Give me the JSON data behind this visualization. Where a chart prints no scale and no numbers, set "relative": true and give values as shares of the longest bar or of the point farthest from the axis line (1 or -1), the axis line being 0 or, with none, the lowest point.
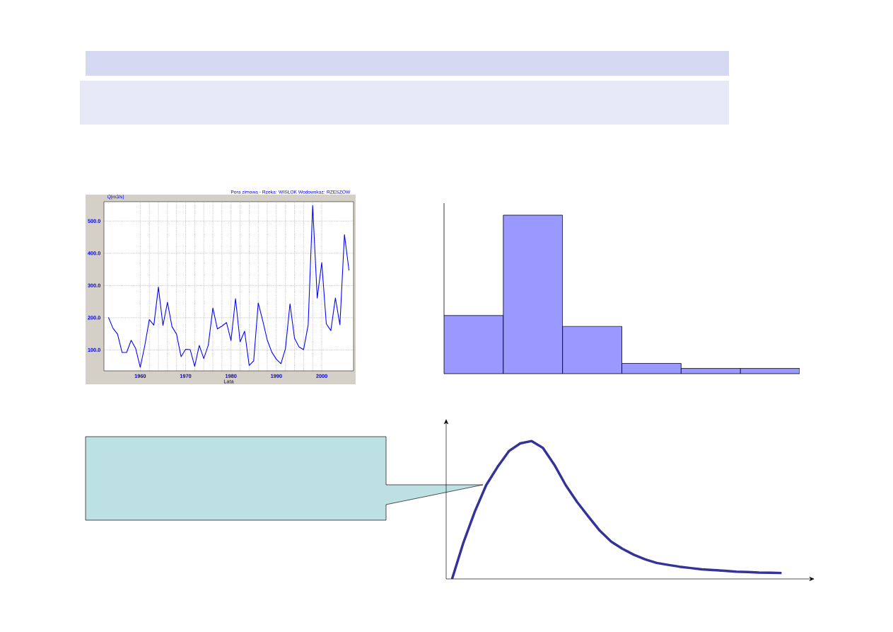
{
  "chart_data": [
    {
      "type": "line",
      "title": "Pora zimowa - Rzeka: WISŁOK Wodowskaz: RZESZÓW",
      "ylabel": "Q[m3/s]",
      "xlabel": "Lata",
      "x": [
        1953,
        1954,
        1955,
        1956,
        1957,
        1958,
        1959,
        1960,
        1961,
        1962,
        1963,
        1964,
        1965,
        1966,
        1967,
        1968,
        1969,
        1970,
        1971,
        1972,
        1973,
        1974,
        1975,
        1976,
        1977,
        1978,
        1979,
        1980,
        1981,
        1982,
        1983,
        1984,
        1985,
        1986,
        1987,
        1988,
        1989,
        1990,
        1991,
        1992,
        1993,
        1994,
        1995,
        1996,
        1997,
        1998,
        1999,
        2000,
        2001,
        2002,
        2003,
        2004,
        2005,
        2006
      ],
      "values": [
        201,
        167,
        149,
        92,
        92,
        130,
        104,
        46,
        113,
        194,
        177,
        295,
        176,
        248,
        172,
        149,
        79,
        102,
        101,
        49,
        114,
        73,
        115,
        230,
        165,
        174,
        185,
        129,
        259,
        125,
        158,
        52,
        66,
        246,
        190,
        130,
        93,
        71,
        57,
        104,
        243,
        136,
        109,
        101,
        177,
        548,
        261,
        371,
        181,
        160,
        261,
        178,
        458,
        347
      ],
      "color": "#0000ff",
      "xlim": [
        1952,
        2007
      ],
      "ylim": [
        35,
        560
      ],
      "xticks": [
        1960,
        1970,
        1980,
        1990,
        2000
      ],
      "yticks": [
        {
          "value": 100,
          "label": "100.0"
        },
        {
          "value": 200,
          "label": "200.0"
        },
        {
          "value": 300,
          "label": "300.0"
        },
        {
          "value": 400,
          "label": "400.0"
        },
        {
          "value": 500,
          "label": "500.0"
        }
      ],
      "grid": true
    },
    {
      "type": "bar",
      "relative": true,
      "categories": [
        null,
        null,
        null,
        null,
        null,
        null
      ],
      "values": [
        0.367,
        1,
        0.299,
        0.065,
        0.033,
        0.033
      ],
      "color": "#9999ff"
    },
    {
      "type": "line",
      "relative": true,
      "categories": [
        null,
        null,
        null,
        null,
        null,
        null,
        null,
        null,
        null,
        null,
        null,
        null,
        null,
        null,
        null,
        null,
        null,
        null,
        null,
        null,
        null,
        null,
        null,
        null,
        null,
        null,
        null,
        null,
        null,
        null
      ],
      "values": [
        0,
        0.264,
        0.488,
        0.68,
        0.812,
        0.927,
        0.983,
        1,
        0.95,
        0.828,
        0.68,
        0.558,
        0.452,
        0.35,
        0.271,
        0.218,
        0.175,
        0.142,
        0.116,
        0.102,
        0.089,
        0.079,
        0.069,
        0.064,
        0.059,
        0.053,
        0.05,
        0.046,
        0.045,
        0.043
      ],
      "color": "#333399"
    }
  ]
}
